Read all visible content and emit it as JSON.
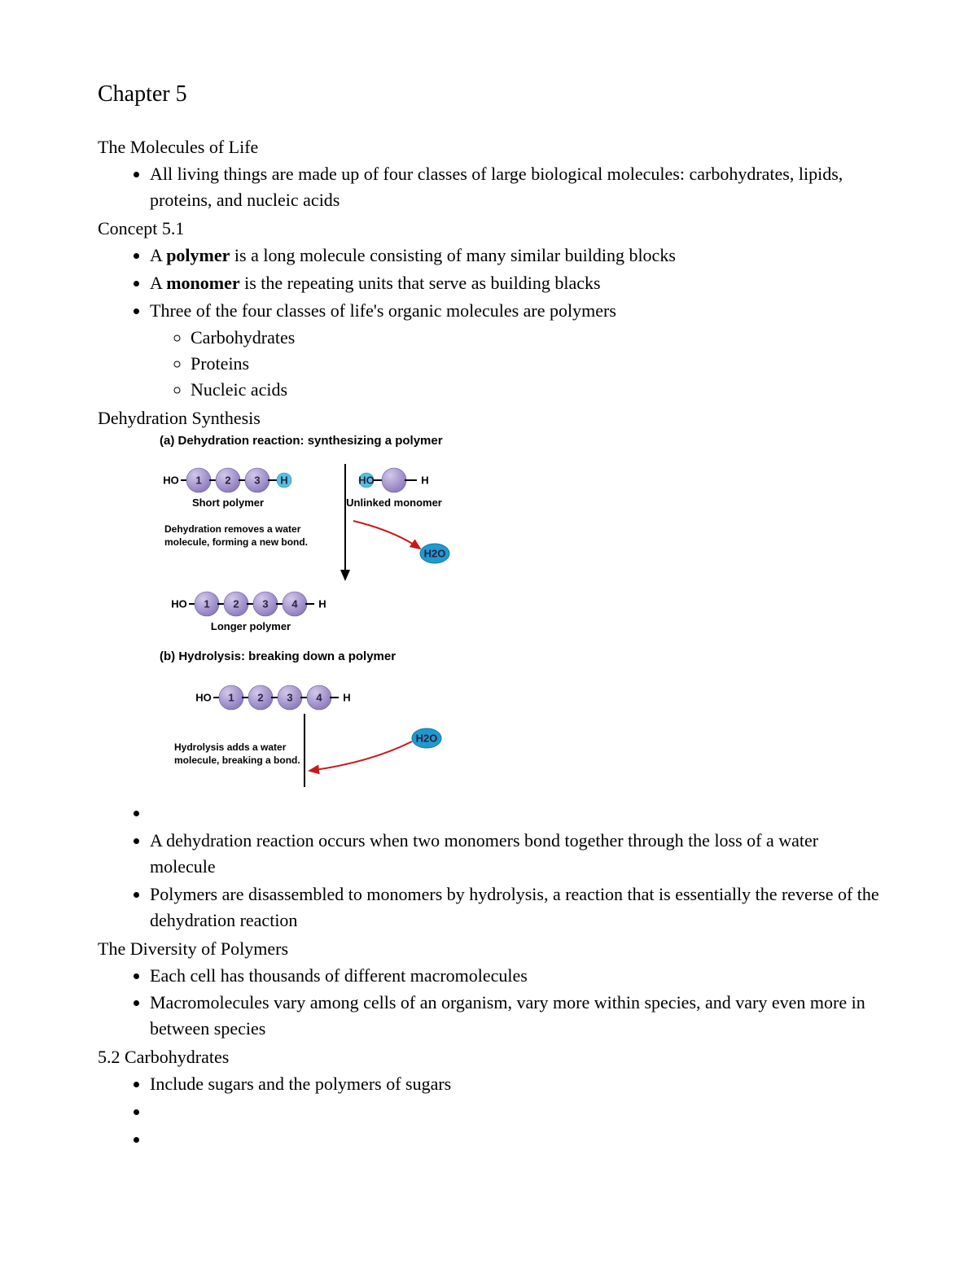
{
  "chapter_title": "Chapter 5",
  "sections": {
    "s1_label": "The Molecules of Life",
    "s1_b1": "All living things are made up of four classes of large biological molecules: carbohydrates, lipids, proteins, and nucleic acids",
    "s2_label": "Concept 5.1",
    "s2_b1_pre": "A ",
    "s2_b1_bold": "polymer",
    "s2_b1_post": " is a long molecule consisting of many similar building blocks",
    "s2_b2_pre": "A ",
    "s2_b2_bold": "monomer",
    "s2_b2_post": " is the repeating units that serve as building blacks",
    "s2_b3": "Three of the four classes of life's organic molecules are polymers",
    "s2_sub1": "Carbohydrates",
    "s2_sub2": "Proteins",
    "s2_sub3": "Nucleic acids",
    "s3_label": "Dehydration Synthesis",
    "s3_b2": "A dehydration reaction occurs when two monomers bond together through the loss of a water molecule",
    "s3_b3": "Polymers are disassembled to monomers by hydrolysis, a reaction that is essentially the reverse of the dehydration reaction",
    "s4_label": "The Diversity of Polymers",
    "s4_b1": "Each cell has thousands of different macromolecules",
    "s4_b2": "Macromolecules vary among cells of an organism, vary more within species, and vary even more in between species",
    "s5_label": "5.2 Carbohydrates",
    "s5_b1": "Include sugars and the polymers of sugars"
  },
  "diagram": {
    "title_a": "(a) Dehydration reaction: synthesizing a polymer",
    "title_b": "(b) Hydrolysis: breaking down a polymer",
    "colors": {
      "sphere_light": "#d2c9ea",
      "sphere_dark": "#8f7dc0",
      "sphere_stroke": "#6a5a9f",
      "small_h_fill": "#56c1e0",
      "small_ho_fill": "#56c1e0",
      "h2o_fill": "#1f9ad1",
      "h2o_text": "#ffffff",
      "red_arrow": "#c91818",
      "bond": "#000000",
      "text": "#000000"
    },
    "labels": {
      "HO": "HO",
      "H": "H",
      "short_polymer": "Short polymer",
      "unlinked_monomer": "Unlinked monomer",
      "dehydration_note1": "Dehydration removes a water",
      "dehydration_note2": "molecule, forming a new bond.",
      "longer_polymer": "Longer polymer",
      "hydrolysis_note1": "Hydrolysis adds a water",
      "hydrolysis_note2": "molecule, breaking a bond.",
      "H2O": "H2O"
    },
    "monomer_r": 15,
    "small_r": 9,
    "h2o_rx": 18,
    "h2o_ry": 12,
    "n1": "1",
    "n2": "2",
    "n3": "3",
    "n4": "4"
  }
}
